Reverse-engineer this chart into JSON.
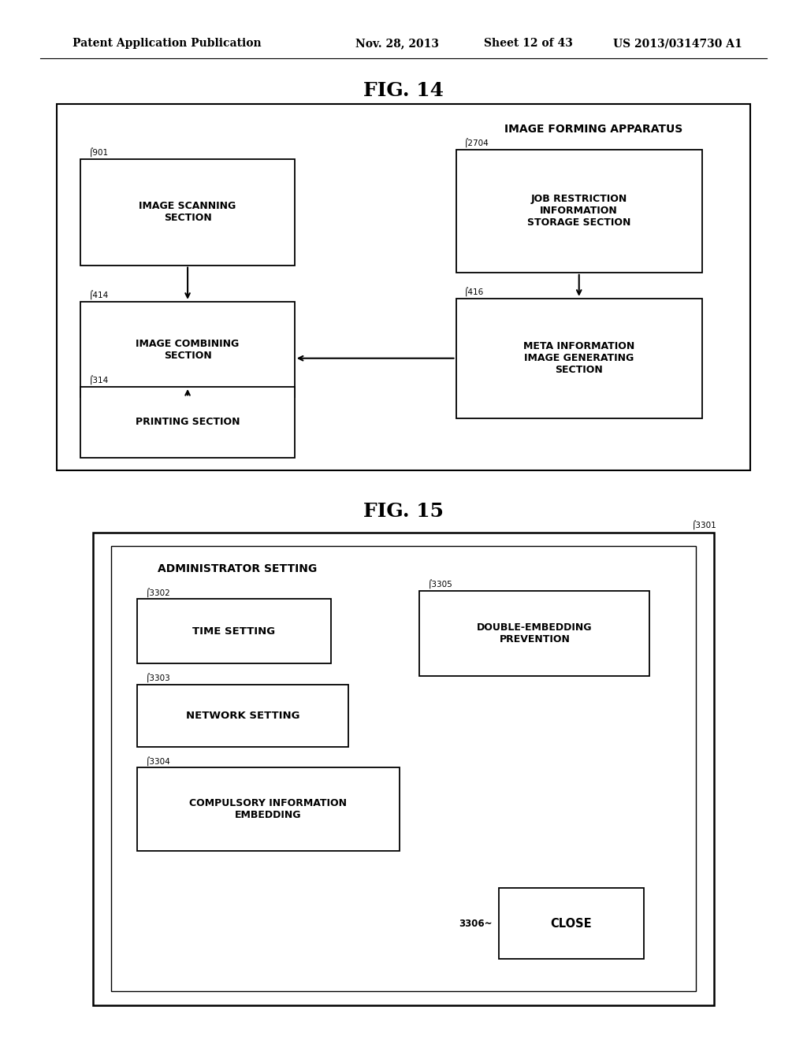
{
  "bg_color": "#ffffff",
  "header_text": "Patent Application Publication",
  "header_date": "Nov. 28, 2013",
  "header_sheet": "Sheet 12 of 43",
  "header_patent": "US 2013/0314730 A1",
  "fig14_title": "FIG. 14",
  "fig15_title": "FIG. 15",
  "fig14_label": "IMAGE FORMING APPARATUS",
  "fig15_title_text": "ADMINISTRATOR SETTING"
}
